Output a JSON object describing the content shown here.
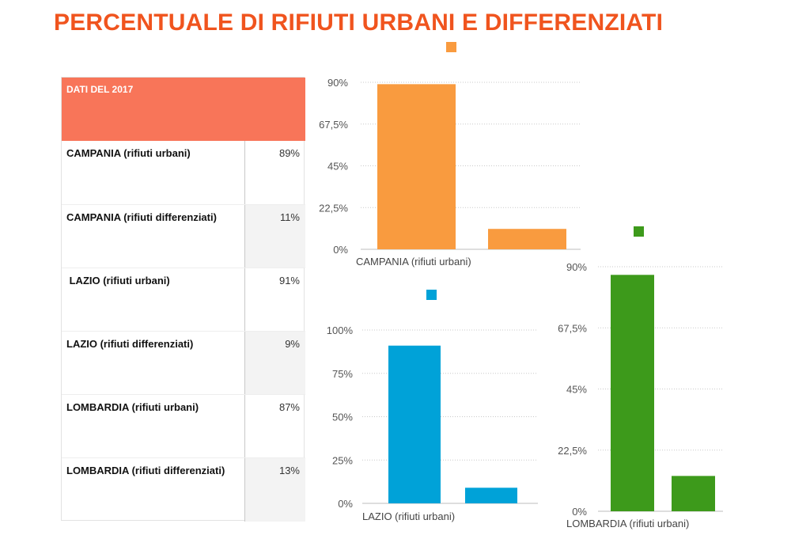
{
  "title": "PERCENTUALE DI RIFIUTI URBANI E DIFFERENZIATI",
  "table": {
    "header": "DATI DEL 2017",
    "rows": [
      {
        "label": "CAMPANIA (rifiuti urbani)",
        "value": "89%"
      },
      {
        "label": "CAMPANIA (rifiuti differenziati)",
        "value": "11%"
      },
      {
        "label": " LAZIO (rifiuti urbani)",
        "value": "91%"
      },
      {
        "label": "LAZIO (rifiuti differenziati)",
        "value": "9%"
      },
      {
        "label": "LOMBARDIA (rifiuti urbani)",
        "value": "87%"
      },
      {
        "label": "LOMBARDIA (rifiuti differenziati)",
        "value": "13%"
      }
    ]
  },
  "chart_data": [
    {
      "type": "bar",
      "categories": [
        "CAMPANIA (rifiuti urbani)",
        ""
      ],
      "values": [
        89,
        11
      ],
      "yticks": [
        "0%",
        "22,5%",
        "45%",
        "67,5%",
        "90%"
      ],
      "ylim": [
        0,
        90
      ],
      "color": "#f99b3f",
      "grid": true,
      "legend": "top"
    },
    {
      "type": "bar",
      "categories": [
        "LAZIO (rifiuti urbani)",
        ""
      ],
      "values": [
        91,
        9
      ],
      "yticks": [
        "0%",
        "25%",
        "50%",
        "75%",
        "100%"
      ],
      "ylim": [
        0,
        100
      ],
      "color": "#00a2d8",
      "grid": true,
      "legend": "top"
    },
    {
      "type": "bar",
      "categories": [
        "LOMBARDIA (rifiuti urbani)",
        ""
      ],
      "values": [
        87,
        13
      ],
      "yticks": [
        "0%",
        "22,5%",
        "45%",
        "67,5%",
        "90%"
      ],
      "ylim": [
        0,
        90
      ],
      "color": "#3d9a1b",
      "grid": true,
      "legend": "top"
    }
  ]
}
